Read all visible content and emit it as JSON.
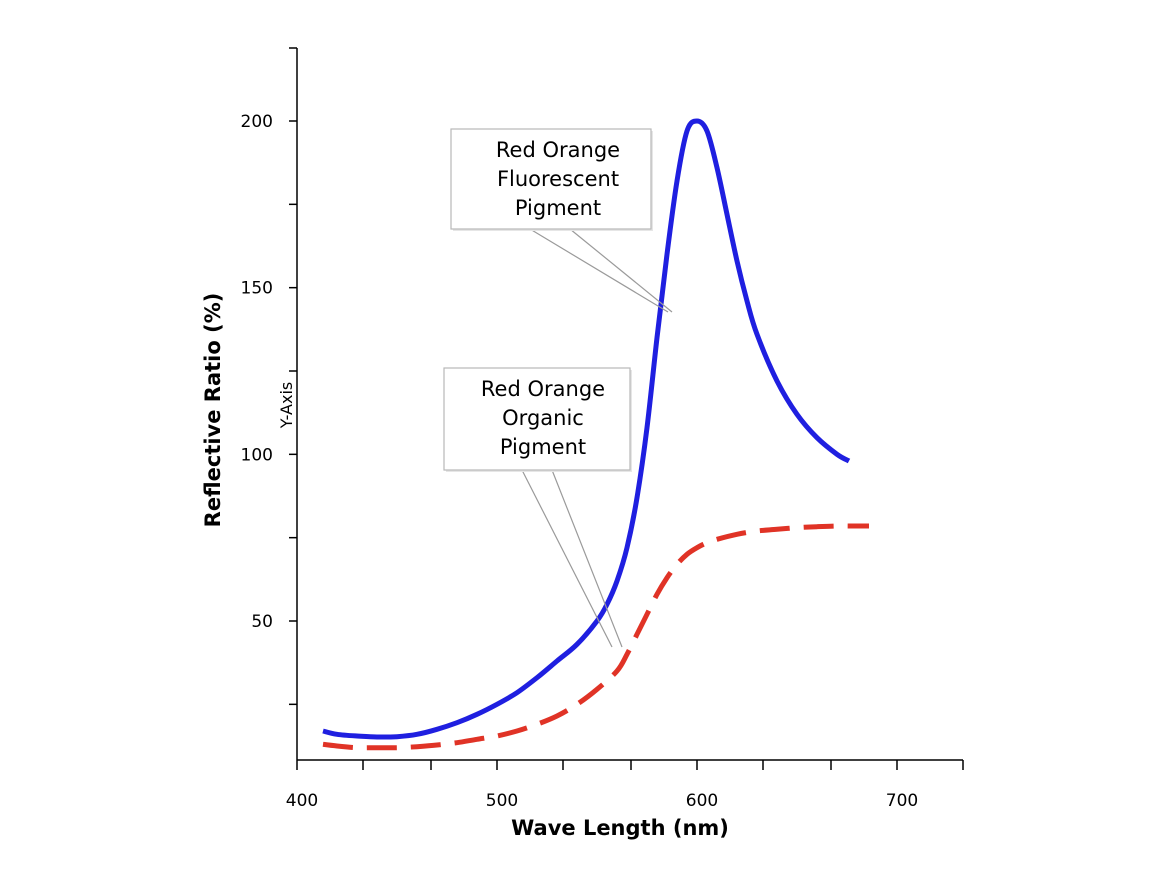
{
  "chart_data": {
    "type": "line",
    "title": "",
    "xlabel": "Wave Length (nm)",
    "ylabel": "Reflective Ratio (%)",
    "y_axis_tag": "Y-Axis",
    "xlim": [
      400,
      730
    ],
    "ylim": [
      0,
      220
    ],
    "x_ticks": [
      400,
      500,
      600,
      700
    ],
    "y_ticks": [
      50,
      100,
      150,
      200
    ],
    "x_minor_ticks": [
      433,
      467,
      533,
      567,
      633,
      667
    ],
    "y_minor_ticks": [
      25,
      75,
      125,
      175
    ],
    "grid": false,
    "series": [
      {
        "name": "Red Orange Fluorescent Pigment",
        "color": "#1f1fe0",
        "style": "solid",
        "x": [
          413,
          420,
          430,
          440,
          450,
          460,
          470,
          480,
          490,
          500,
          510,
          520,
          530,
          540,
          550,
          555,
          560,
          565,
          570,
          575,
          580,
          585,
          590,
          595,
          600,
          605,
          610,
          615,
          620,
          625,
          630,
          640,
          650,
          660,
          670,
          676
        ],
        "y": [
          17,
          16,
          15.5,
          15.2,
          15.3,
          16,
          17.5,
          19.5,
          22,
          25,
          28.5,
          33,
          38,
          43,
          50,
          55,
          62,
          72,
          87,
          108,
          135,
          160,
          182,
          197,
          200,
          197,
          186,
          172,
          158,
          146,
          136,
          122,
          112,
          105,
          100,
          98
        ]
      },
      {
        "name": "Red Orange Organic Pigment",
        "color": "#e03326",
        "style": "dashed",
        "x": [
          413,
          420,
          430,
          440,
          450,
          460,
          470,
          480,
          490,
          500,
          510,
          520,
          530,
          540,
          550,
          560,
          565,
          570,
          575,
          580,
          585,
          590,
          595,
          600,
          605,
          610,
          620,
          630,
          640,
          650,
          660,
          670,
          680,
          686
        ],
        "y": [
          13,
          12.5,
          12,
          12,
          12,
          12.3,
          12.8,
          13.5,
          14.5,
          15.5,
          17,
          19,
          21.5,
          25,
          29.5,
          35,
          40,
          46,
          52,
          58,
          63,
          67,
          70,
          72,
          73.5,
          74.5,
          76,
          77,
          77.5,
          78,
          78.3,
          78.5,
          78.5,
          78.5
        ]
      }
    ],
    "annotations": [
      {
        "text": [
          "Red Orange",
          "Fluorescent",
          "Pigment"
        ],
        "target_series": 0
      },
      {
        "text": [
          "Red Orange",
          "Organic",
          "Pigment"
        ],
        "target_series": 1
      }
    ]
  }
}
